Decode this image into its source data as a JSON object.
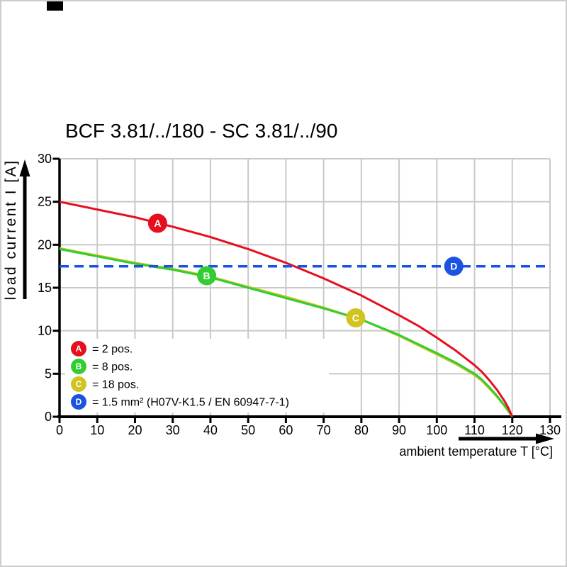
{
  "chart_data": {
    "type": "line",
    "title": "BCF 3.81/../180 - SC 3.81/../90",
    "xlabel": "ambient temperature T [°C]",
    "ylabel": "load current I [A]",
    "xlim": [
      0,
      130
    ],
    "ylim": [
      0,
      30
    ],
    "x_ticks": [
      0,
      10,
      20,
      30,
      40,
      50,
      60,
      70,
      80,
      90,
      100,
      110,
      120,
      130
    ],
    "y_ticks": [
      0,
      5,
      10,
      15,
      20,
      25,
      30
    ],
    "grid": true,
    "grid_color": "#c9c9c9",
    "axis_color": "#000000",
    "series": [
      {
        "id": "A",
        "label": "2 pos.",
        "color": "#e60f1e",
        "z": 3,
        "dash": false,
        "points": [
          [
            0,
            25
          ],
          [
            10,
            24.1
          ],
          [
            20,
            23.2
          ],
          [
            30,
            22.1
          ],
          [
            40,
            20.9
          ],
          [
            50,
            19.5
          ],
          [
            60,
            17.9
          ],
          [
            70,
            16.1
          ],
          [
            80,
            14.1
          ],
          [
            90,
            11.8
          ],
          [
            95,
            10.6
          ],
          [
            100,
            9.2
          ],
          [
            105,
            7.7
          ],
          [
            110,
            6.0
          ],
          [
            112,
            5.2
          ],
          [
            114,
            4.2
          ],
          [
            116,
            3.1
          ],
          [
            118,
            1.8
          ],
          [
            119,
            1.0
          ],
          [
            120,
            0
          ]
        ],
        "marker": {
          "x": 26,
          "y": 22.5
        }
      },
      {
        "id": "B",
        "label": "8 pos.",
        "color": "#32cd32",
        "z": 2,
        "dash": false,
        "points": [
          [
            0,
            19.5
          ],
          [
            10,
            18.65
          ],
          [
            20,
            17.8
          ],
          [
            30,
            17.1
          ],
          [
            40,
            16.2
          ],
          [
            50,
            15.0
          ],
          [
            60,
            13.8
          ],
          [
            70,
            12.6
          ],
          [
            80,
            11.3
          ],
          [
            90,
            9.5
          ],
          [
            100,
            7.4
          ],
          [
            105,
            6.3
          ],
          [
            110,
            5.0
          ],
          [
            112,
            4.3
          ],
          [
            114,
            3.4
          ],
          [
            116,
            2.4
          ],
          [
            118,
            1.3
          ],
          [
            119,
            0.7
          ],
          [
            120,
            0
          ]
        ],
        "marker": {
          "x": 39,
          "y": 16.4
        }
      },
      {
        "id": "C",
        "label": "18 pos.",
        "color": "#d0c420",
        "z": 1,
        "dash": false,
        "points": [
          [
            0,
            19.6
          ],
          [
            10,
            18.75
          ],
          [
            20,
            17.9
          ],
          [
            30,
            17.2
          ],
          [
            40,
            16.3
          ],
          [
            50,
            15.1
          ],
          [
            60,
            13.95
          ],
          [
            70,
            12.7
          ],
          [
            80,
            11.3
          ],
          [
            90,
            9.4
          ],
          [
            100,
            7.25
          ],
          [
            105,
            6.15
          ],
          [
            110,
            4.85
          ],
          [
            112,
            4.15
          ],
          [
            114,
            3.25
          ],
          [
            116,
            2.3
          ],
          [
            118,
            1.2
          ],
          [
            119,
            0.6
          ],
          [
            120,
            0
          ]
        ],
        "marker": {
          "x": 78.5,
          "y": 11.5
        }
      },
      {
        "id": "D",
        "label": "1.5 mm² (H07V-K1.5 / EN 60947-7-1)",
        "color": "#1953e0",
        "z": 4,
        "dash": true,
        "points": [
          [
            0,
            17.5
          ],
          [
            130,
            17.5
          ]
        ],
        "marker": {
          "x": 104.5,
          "y": 17.5
        }
      }
    ],
    "legend": [
      {
        "badge": "A",
        "color": "#e60f1e",
        "text": "= 2 pos."
      },
      {
        "badge": "B",
        "color": "#32cd32",
        "text": "= 8 pos."
      },
      {
        "badge": "C",
        "color": "#d0c420",
        "text": "= 18 pos."
      },
      {
        "badge": "D",
        "color": "#1953e0",
        "text": "= 1.5 mm² (H07V-K1.5 / EN 60947-7-1)"
      }
    ],
    "legend_position": "inside-lower-left"
  }
}
